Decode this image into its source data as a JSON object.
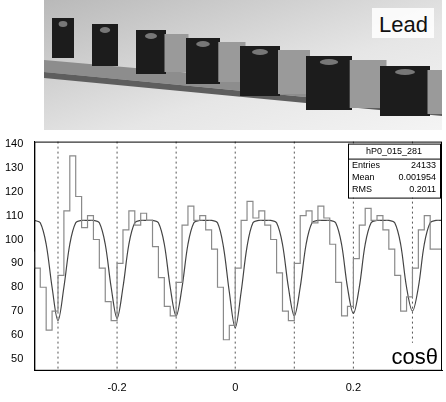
{
  "image_label": "Lead",
  "chart_data": {
    "type": "histogram",
    "x_label": "cosθ",
    "bins": [
      -0.34,
      -0.33,
      -0.32,
      -0.31,
      -0.3,
      -0.29,
      -0.28,
      -0.27,
      -0.26,
      -0.25,
      -0.24,
      -0.23,
      -0.22,
      -0.21,
      -0.2,
      -0.19,
      -0.18,
      -0.17,
      -0.16,
      -0.15,
      -0.14,
      -0.13,
      -0.12,
      -0.11,
      -0.1,
      -0.09,
      -0.08,
      -0.07,
      -0.06,
      -0.05,
      -0.04,
      -0.03,
      -0.02,
      -0.01,
      0,
      0.01,
      0.02,
      0.03,
      0.04,
      0.05,
      0.06,
      0.07,
      0.08,
      0.09,
      0.1,
      0.11,
      0.12,
      0.13,
      0.14,
      0.15,
      0.16,
      0.17,
      0.18,
      0.19,
      0.2,
      0.21,
      0.22,
      0.23,
      0.24,
      0.25,
      0.26,
      0.27,
      0.28,
      0.29,
      0.3,
      0.31,
      0.32,
      0.33,
      0.34,
      0.35
    ],
    "counts": [
      95,
      88,
      80,
      62,
      70,
      85,
      112,
      135,
      118,
      105,
      110,
      100,
      88,
      74,
      66,
      90,
      104,
      112,
      106,
      111,
      108,
      97,
      84,
      72,
      68,
      82,
      106,
      114,
      108,
      110,
      104,
      96,
      80,
      58,
      64,
      88,
      108,
      116,
      109,
      112,
      106,
      100,
      86,
      70,
      66,
      90,
      110,
      112,
      107,
      114,
      109,
      98,
      82,
      68,
      72,
      92,
      106,
      113,
      108,
      110,
      104,
      96,
      85,
      70,
      76,
      88,
      104,
      110,
      96
    ],
    "color": "#8a8a8a",
    "fit": {
      "x": [
        -0.34,
        -0.33,
        -0.32,
        -0.31,
        -0.3,
        -0.29,
        -0.28,
        -0.27,
        -0.26,
        -0.25,
        -0.24,
        -0.23,
        -0.22,
        -0.21,
        -0.2,
        -0.19,
        -0.18,
        -0.17,
        -0.16,
        -0.15,
        -0.14,
        -0.13,
        -0.12,
        -0.11,
        -0.1,
        -0.09,
        -0.08,
        -0.07,
        -0.06,
        -0.05,
        -0.04,
        -0.03,
        -0.02,
        -0.01,
        0,
        0.01,
        0.02,
        0.03,
        0.04,
        0.05,
        0.06,
        0.07,
        0.08,
        0.09,
        0.1,
        0.11,
        0.12,
        0.13,
        0.14,
        0.15,
        0.16,
        0.17,
        0.18,
        0.19,
        0.2,
        0.21,
        0.22,
        0.23,
        0.24,
        0.25,
        0.26,
        0.27,
        0.28,
        0.29,
        0.3,
        0.31,
        0.32,
        0.33,
        0.34,
        0.35
      ],
      "values": [
        108,
        107,
        98,
        80,
        66,
        80,
        98,
        107,
        108,
        108,
        108,
        107,
        98,
        80,
        67,
        80,
        98,
        107,
        108,
        108,
        108,
        107,
        98,
        80,
        68,
        80,
        98,
        107,
        108,
        108,
        108,
        107,
        97,
        78,
        63,
        78,
        97,
        107,
        108,
        108,
        108,
        107,
        98,
        80,
        68,
        80,
        98,
        107,
        108,
        108,
        108,
        107,
        98,
        80,
        69,
        80,
        98,
        107,
        108,
        108,
        108,
        107,
        98,
        80,
        70,
        80,
        98,
        107,
        108,
        108
      ],
      "color": "#444444"
    },
    "dashed_lines": [
      -0.3,
      -0.2,
      -0.1,
      0,
      0.1,
      0.2,
      0.3
    ],
    "xlim": [
      -0.34,
      0.35
    ],
    "xticks": [
      -0.2,
      0,
      0.2
    ],
    "ylim": [
      45,
      141
    ],
    "yticks": [
      50,
      60,
      70,
      80,
      90,
      100,
      110,
      120,
      130,
      140
    ],
    "grid": false,
    "stats": {
      "title": "hP0_015_281",
      "rows": [
        [
          "Entries",
          24133
        ],
        [
          "Mean",
          0.001954
        ],
        [
          "RMS",
          0.2011
        ]
      ]
    }
  }
}
